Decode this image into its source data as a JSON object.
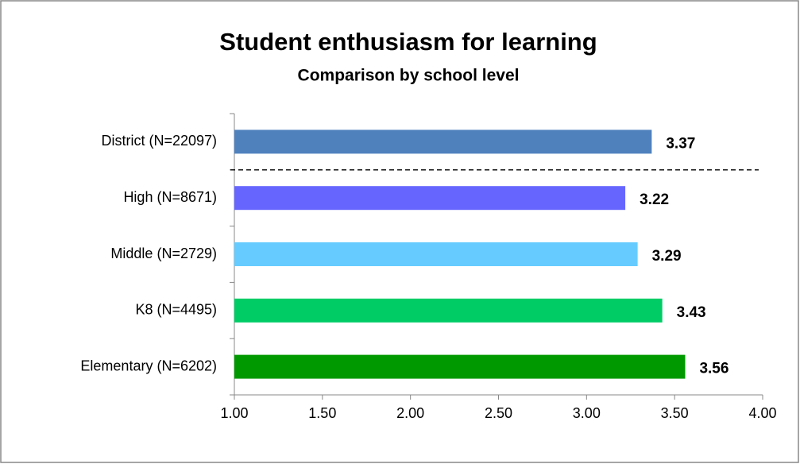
{
  "chart_data": {
    "type": "barh",
    "title": "Student enthusiasm for learning",
    "subtitle": "Comparison by school level",
    "categories": [
      "District (N=22097)",
      "High (N=8671)",
      "Middle (N=2729)",
      "K8 (N=4495)",
      "Elementary (N=6202)"
    ],
    "values": [
      3.37,
      3.22,
      3.29,
      3.43,
      3.56
    ],
    "colors": [
      "#4f81bd",
      "#6666ff",
      "#66ccff",
      "#00cc66",
      "#009900"
    ],
    "xlim": [
      1,
      4
    ],
    "xticks": [
      {
        "value": 1,
        "label": "1.00"
      },
      {
        "value": 1.5,
        "label": "1.50"
      },
      {
        "value": 2,
        "label": "2.00"
      },
      {
        "value": 2.5,
        "label": "2.50"
      },
      {
        "value": 3,
        "label": "3.00"
      },
      {
        "value": 3.5,
        "label": "3.50"
      },
      {
        "value": 4,
        "label": "4.00"
      }
    ],
    "grid": false
  }
}
